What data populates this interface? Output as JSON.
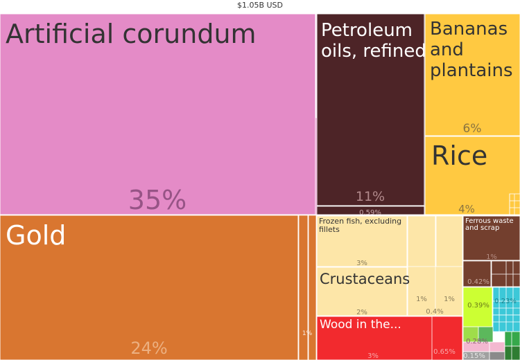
{
  "chart_data": {
    "type": "treemap",
    "total_label": "$1.05B USD",
    "tiles": [
      {
        "name": "Artificial corundum",
        "percent": "35%",
        "value": 35,
        "color": "#e48bc7"
      },
      {
        "name": "Petroleum oils, refined",
        "percent": "11%",
        "value": 11,
        "color": "#4d2427"
      },
      {
        "name": "Bananas and plantains",
        "percent": "6%",
        "value": 6,
        "color": "#ffc941"
      },
      {
        "name": "Rice",
        "percent": "4%",
        "value": 4,
        "color": "#ffc941"
      },
      {
        "name": "Gold",
        "percent": "24%",
        "value": 24,
        "color": "#d97630"
      },
      {
        "name": "Frozen fish, excluding fillets",
        "percent": "3%",
        "value": 3,
        "color": "#fde6a8"
      },
      {
        "name": "Crustaceans",
        "percent": "2%",
        "value": 2,
        "color": "#fde6a8"
      },
      {
        "name": "Wood in the...",
        "percent": "3%",
        "value": 3,
        "color": "#f22a2e"
      },
      {
        "name": "Ferrous waste and scrap",
        "percent": "1%",
        "value": 1,
        "color": "#733f2e"
      }
    ],
    "small_labels": [
      "0.59%",
      "1%",
      "1%",
      "1%",
      "0.4%",
      "0.65%",
      "0.42%",
      "0.39%",
      "0.23%",
      "0.28%",
      "0.15%"
    ]
  }
}
